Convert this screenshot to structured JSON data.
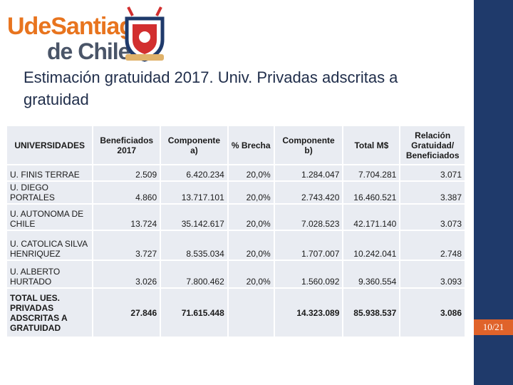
{
  "logo": {
    "line1": "UdeSantiago",
    "line2": "de Chile"
  },
  "title": "Estimación gratuidad 2017. Univ. Privadas adscritas a gratuidad",
  "table": {
    "header": [
      "UNIVERSIDADES",
      "Beneficiados 2017",
      "Componente a)",
      "% Brecha",
      "Componente b)",
      "Total M$",
      "Relación Gratuidad/ Beneficiados"
    ],
    "rows": [
      [
        "U. FINIS TERRAE",
        "2.509",
        "6.420.234",
        "20,0%",
        "1.284.047",
        "7.704.281",
        "3.071"
      ],
      [
        "U. DIEGO PORTALES",
        "4.860",
        "13.717.101",
        "20,0%",
        "2.743.420",
        "16.460.521",
        "3.387"
      ],
      [
        "U. AUTONOMA DE CHILE",
        "13.724",
        "35.142.617",
        "20,0%",
        "7.028.523",
        "42.171.140",
        "3.073"
      ],
      [
        "U. CATOLICA SILVA HENRIQUEZ",
        "3.727",
        "8.535.034",
        "20,0%",
        "1.707.007",
        "10.242.041",
        "2.748"
      ],
      [
        "U. ALBERTO HURTADO",
        "3.026",
        "7.800.462",
        "20,0%",
        "1.560.092",
        "9.360.554",
        "3.093"
      ],
      [
        "TOTAL UES. PRIVADAS ADSCRITAS A GRATUIDAD",
        "27.846",
        "71.615.448",
        null,
        "14.323.089",
        "85.938.537",
        "3.086"
      ]
    ]
  },
  "page_number": "10/21"
}
